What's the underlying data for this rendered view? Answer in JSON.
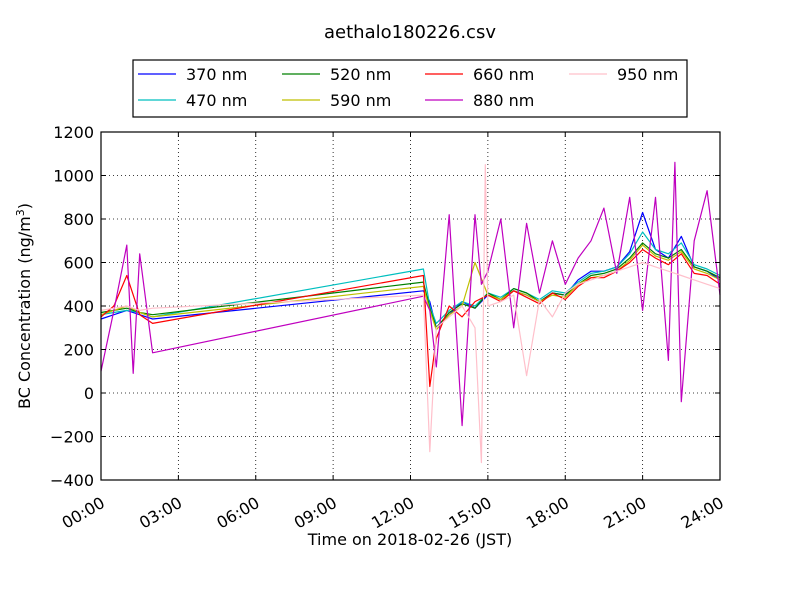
{
  "chart_data": {
    "type": "line",
    "title": "aethalo180226.csv",
    "xlabel": "Time on 2018-02-26 (JST)",
    "ylabel": "BC Concentration (ng/m",
    "ylabel_sup": "3",
    "ylabel_close": ")",
    "xlim": [
      0,
      24
    ],
    "ylim": [
      -400,
      1200
    ],
    "x_ticks": [
      0,
      3,
      6,
      9,
      12,
      15,
      18,
      21,
      24
    ],
    "x_tick_labels": [
      "00:00",
      "03:00",
      "06:00",
      "09:00",
      "12:00",
      "15:00",
      "18:00",
      "21:00",
      "24:00"
    ],
    "y_ticks": [
      -400,
      -200,
      0,
      200,
      400,
      600,
      800,
      1000,
      1200
    ],
    "y_tick_labels": [
      "−400",
      "−200",
      "0",
      "200",
      "400",
      "600",
      "800",
      "1000",
      "1200"
    ],
    "grid": true,
    "legend_position": "top",
    "series": [
      {
        "name": "370 nm",
        "color": "#0000ff",
        "x": [
          0.0,
          0.5,
          1.0,
          1.5,
          2.0,
          12.5,
          12.75,
          13.0,
          13.5,
          14.0,
          14.5,
          15.0,
          15.5,
          16.0,
          16.5,
          17.0,
          17.5,
          18.0,
          18.5,
          19.0,
          19.5,
          20.0,
          20.5,
          21.0,
          21.5,
          22.0,
          22.5,
          23.0,
          23.5,
          24.0
        ],
        "y": [
          340,
          360,
          380,
          360,
          340,
          470,
          420,
          300,
          360,
          420,
          390,
          450,
          430,
          470,
          450,
          420,
          460,
          450,
          520,
          560,
          560,
          580,
          650,
          830,
          660,
          620,
          720,
          580,
          560,
          520
        ]
      },
      {
        "name": "470 nm",
        "color": "#00bfbf",
        "x": [
          0.0,
          0.5,
          1.0,
          1.5,
          2.0,
          12.5,
          12.75,
          13.0,
          13.5,
          14.0,
          14.5,
          15.0,
          15.5,
          16.0,
          16.5,
          17.0,
          17.5,
          18.0,
          18.5,
          19.0,
          19.5,
          20.0,
          20.5,
          21.0,
          21.5,
          22.0,
          22.5,
          23.0,
          23.5,
          24.0
        ],
        "y": [
          360,
          370,
          380,
          370,
          350,
          570,
          400,
          320,
          380,
          420,
          400,
          460,
          440,
          480,
          460,
          430,
          470,
          460,
          510,
          550,
          560,
          580,
          640,
          740,
          660,
          640,
          690,
          590,
          570,
          540
        ]
      },
      {
        "name": "520 nm",
        "color": "#008000",
        "x": [
          0.0,
          0.5,
          1.0,
          1.5,
          2.0,
          12.5,
          12.75,
          13.0,
          13.5,
          14.0,
          14.5,
          15.0,
          15.5,
          16.0,
          16.5,
          17.0,
          17.5,
          18.0,
          18.5,
          19.0,
          19.5,
          20.0,
          20.5,
          21.0,
          21.5,
          22.0,
          22.5,
          23.0,
          23.5,
          24.0
        ],
        "y": [
          370,
          380,
          390,
          370,
          360,
          510,
          390,
          300,
          370,
          410,
          390,
          460,
          430,
          480,
          460,
          420,
          460,
          450,
          500,
          540,
          550,
          570,
          620,
          690,
          640,
          620,
          660,
          580,
          560,
          530
        ]
      },
      {
        "name": "590 nm",
        "color": "#bfbf00",
        "x": [
          0.0,
          0.5,
          1.0,
          1.5,
          2.0,
          12.5,
          12.75,
          13.0,
          13.5,
          14.0,
          14.5,
          15.0,
          15.5,
          16.0,
          16.5,
          17.0,
          17.5,
          18.0,
          18.5,
          19.0,
          19.5,
          20.0,
          20.5,
          21.0,
          21.5,
          22.0,
          22.5,
          23.0,
          23.5,
          24.0
        ],
        "y": [
          360,
          380,
          400,
          370,
          350,
          490,
          380,
          290,
          360,
          400,
          600,
          450,
          430,
          470,
          450,
          420,
          450,
          440,
          500,
          530,
          540,
          560,
          610,
          680,
          630,
          610,
          650,
          570,
          550,
          520
        ]
      },
      {
        "name": "660 nm",
        "color": "#ff0000",
        "x": [
          0.0,
          0.5,
          1.0,
          1.5,
          2.0,
          12.5,
          12.75,
          13.0,
          13.5,
          14.0,
          14.5,
          15.0,
          15.5,
          16.0,
          16.5,
          17.0,
          17.5,
          18.0,
          18.5,
          19.0,
          19.5,
          20.0,
          20.5,
          21.0,
          21.5,
          22.0,
          22.5,
          23.0,
          23.5,
          24.0
        ],
        "y": [
          350,
          400,
          540,
          360,
          320,
          540,
          30,
          250,
          400,
          350,
          420,
          450,
          420,
          470,
          440,
          410,
          460,
          430,
          490,
          530,
          530,
          560,
          600,
          660,
          620,
          590,
          640,
          550,
          540,
          500
        ]
      },
      {
        "name": "880 nm",
        "color": "#bf00bf",
        "x": [
          0.0,
          0.5,
          1.0,
          1.25,
          1.5,
          2.0,
          12.5,
          12.75,
          13.0,
          13.5,
          14.0,
          14.5,
          14.75,
          15.0,
          15.5,
          16.0,
          16.5,
          17.0,
          17.5,
          18.0,
          18.5,
          19.0,
          19.5,
          20.0,
          20.5,
          21.0,
          21.5,
          22.0,
          22.25,
          22.5,
          23.0,
          23.5,
          24.0
        ],
        "y": [
          100,
          380,
          680,
          90,
          640,
          185,
          445,
          380,
          120,
          820,
          -150,
          820,
          500,
          560,
          800,
          300,
          780,
          460,
          700,
          500,
          620,
          700,
          850,
          550,
          900,
          380,
          900,
          150,
          1060,
          -40,
          700,
          930,
          450
        ]
      },
      {
        "name": "950 nm",
        "color": "#ffc0cb",
        "x": [
          0.0,
          0.5,
          1.0,
          1.5,
          2.0,
          12.5,
          12.75,
          13.0,
          13.5,
          14.0,
          14.5,
          14.75,
          14.9,
          15.0,
          15.5,
          16.0,
          16.5,
          17.0,
          17.5,
          18.0,
          18.5,
          19.0,
          19.5,
          20.0,
          20.5,
          21.0,
          21.5,
          22.0,
          22.5,
          23.0,
          23.5,
          24.0
        ],
        "y": [
          380,
          390,
          400,
          380,
          390,
          450,
          -270,
          300,
          350,
          400,
          300,
          -320,
          1050,
          400,
          420,
          450,
          80,
          430,
          350,
          460,
          500,
          520,
          540,
          560,
          580,
          600,
          580,
          560,
          540,
          520,
          500,
          480
        ]
      }
    ]
  }
}
